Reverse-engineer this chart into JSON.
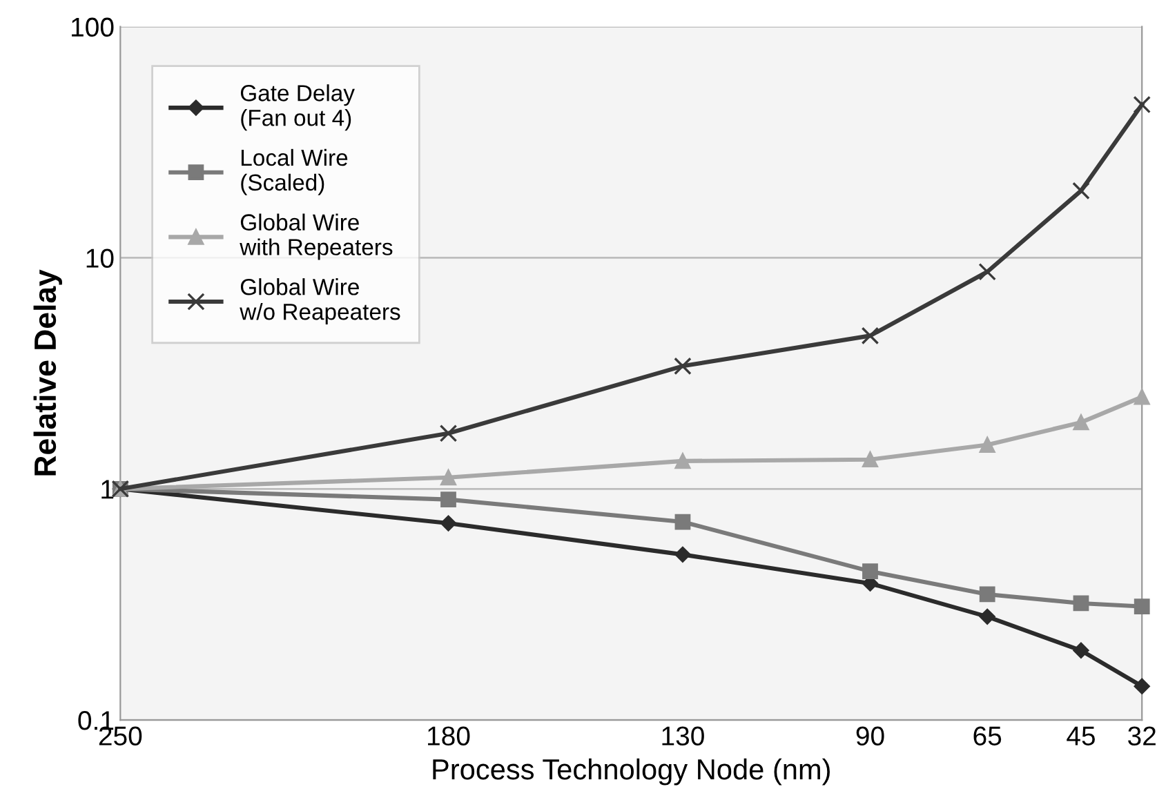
{
  "chart_data": {
    "type": "line",
    "xlabel": "Process Technology Node (nm)",
    "ylabel": "Relative Delay",
    "xlim": [
      250,
      32
    ],
    "xticks": [
      250,
      180,
      130,
      90,
      65,
      45,
      32
    ],
    "ylim": [
      0.1,
      100
    ],
    "yticks": [
      0.1,
      1,
      10,
      100
    ],
    "log": "y",
    "grid": "y",
    "legend": "top left",
    "series": [
      {
        "name": "Gate Delay\n(Fan out 4)",
        "color": "#2b2b2b",
        "marker": "diamond",
        "x": [
          250,
          180,
          130,
          90,
          65,
          45,
          32
        ],
        "values": [
          1,
          0.71,
          0.52,
          0.39,
          0.28,
          0.2,
          0.14
        ]
      },
      {
        "name": "Local Wire\n(Scaled)",
        "color": "#7a7a7a",
        "marker": "square",
        "x": [
          250,
          180,
          130,
          90,
          65,
          45,
          32
        ],
        "values": [
          1,
          0.9,
          0.72,
          0.44,
          0.35,
          0.32,
          0.31
        ]
      },
      {
        "name": "Global Wire\nwith Repeaters",
        "color": "#a8a8a8",
        "marker": "triangle",
        "x": [
          250,
          180,
          130,
          90,
          65,
          45,
          32
        ],
        "values": [
          1,
          1.12,
          1.32,
          1.34,
          1.55,
          1.94,
          2.5
        ]
      },
      {
        "name": "Global Wire\nw/o Reapeaters",
        "color": "#3a3a3a",
        "marker": "cross",
        "x": [
          250,
          180,
          130,
          90,
          65,
          45,
          32
        ],
        "values": [
          1,
          1.74,
          3.4,
          4.6,
          8.7,
          19.5,
          46
        ]
      }
    ]
  }
}
